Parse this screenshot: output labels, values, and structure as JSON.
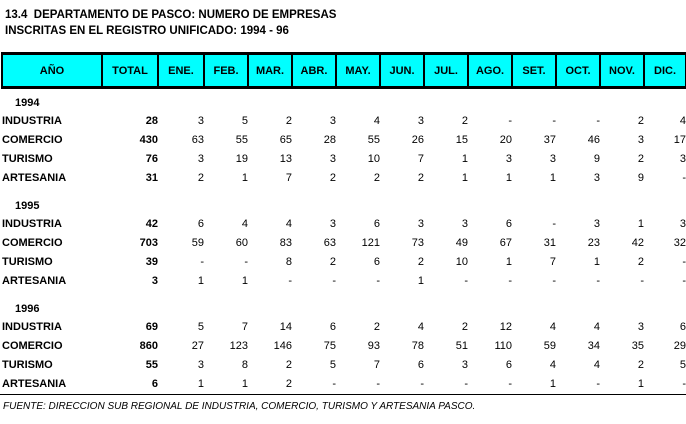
{
  "title": {
    "line1": "13.4  DEPARTAMENTO DE PASCO: NUMERO DE EMPRESAS",
    "line2": "INSCRITAS EN EL REGISTRO UNIFICADO: 1994 - 96"
  },
  "table": {
    "header_bg": "#00FFFF",
    "columns": [
      "AÑO",
      "TOTAL",
      "ENE.",
      "FEB.",
      "MAR.",
      "ABR.",
      "MAY.",
      "JUN.",
      "JUL.",
      "AGO.",
      "SET.",
      "OCT.",
      "NOV.",
      "DIC."
    ],
    "sections": [
      {
        "year": "1994",
        "rows": [
          {
            "label": "INDUSTRIA",
            "total": "28",
            "months": [
              "3",
              "5",
              "2",
              "3",
              "4",
              "3",
              "2",
              "-",
              "-",
              "-",
              "2",
              "4"
            ]
          },
          {
            "label": "COMERCIO",
            "total": "430",
            "months": [
              "63",
              "55",
              "65",
              "28",
              "55",
              "26",
              "15",
              "20",
              "37",
              "46",
              "3",
              "17"
            ]
          },
          {
            "label": "TURISMO",
            "total": "76",
            "months": [
              "3",
              "19",
              "13",
              "3",
              "10",
              "7",
              "1",
              "3",
              "3",
              "9",
              "2",
              "3"
            ]
          },
          {
            "label": "ARTESANIA",
            "total": "31",
            "months": [
              "2",
              "1",
              "7",
              "2",
              "2",
              "2",
              "1",
              "1",
              "1",
              "3",
              "9",
              "-"
            ]
          }
        ]
      },
      {
        "year": "1995",
        "rows": [
          {
            "label": "INDUSTRIA",
            "total": "42",
            "months": [
              "6",
              "4",
              "4",
              "3",
              "6",
              "3",
              "3",
              "6",
              "-",
              "3",
              "1",
              "3"
            ]
          },
          {
            "label": "COMERCIO",
            "total": "703",
            "months": [
              "59",
              "60",
              "83",
              "63",
              "121",
              "73",
              "49",
              "67",
              "31",
              "23",
              "42",
              "32"
            ]
          },
          {
            "label": "TURISMO",
            "total": "39",
            "months": [
              "-",
              "-",
              "8",
              "2",
              "6",
              "2",
              "10",
              "1",
              "7",
              "1",
              "2",
              "-"
            ]
          },
          {
            "label": "ARTESANIA",
            "total": "3",
            "months": [
              "1",
              "1",
              "-",
              "-",
              "-",
              "1",
              "-",
              "-",
              "-",
              "-",
              "-",
              "-"
            ]
          }
        ]
      },
      {
        "year": "1996",
        "rows": [
          {
            "label": "INDUSTRIA",
            "total": "69",
            "months": [
              "5",
              "7",
              "14",
              "6",
              "2",
              "4",
              "2",
              "12",
              "4",
              "4",
              "3",
              "6"
            ]
          },
          {
            "label": "COMERCIO",
            "total": "860",
            "months": [
              "27",
              "123",
              "146",
              "75",
              "93",
              "78",
              "51",
              "110",
              "59",
              "34",
              "35",
              "29"
            ]
          },
          {
            "label": "TURISMO",
            "total": "55",
            "months": [
              "3",
              "8",
              "2",
              "5",
              "7",
              "6",
              "3",
              "6",
              "4",
              "4",
              "2",
              "5"
            ]
          },
          {
            "label": "ARTESANIA",
            "total": "6",
            "months": [
              "1",
              "1",
              "2",
              "-",
              "-",
              "-",
              "-",
              "-",
              "1",
              "-",
              "1",
              "-"
            ]
          }
        ]
      }
    ]
  },
  "footer": {
    "source": "FUENTE: DIRECCION SUB REGIONAL DE INDUSTRIA, COMERCIO, TURISMO Y ARTESANIA PASCO."
  }
}
